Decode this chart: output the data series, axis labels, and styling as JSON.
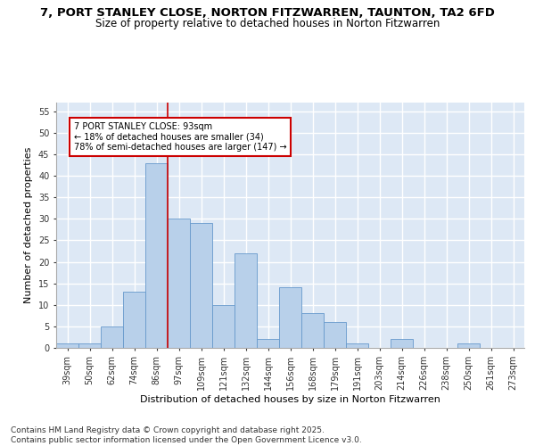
{
  "title1": "7, PORT STANLEY CLOSE, NORTON FITZWARREN, TAUNTON, TA2 6FD",
  "title2": "Size of property relative to detached houses in Norton Fitzwarren",
  "xlabel": "Distribution of detached houses by size in Norton Fitzwarren",
  "ylabel": "Number of detached properties",
  "categories": [
    "39sqm",
    "50sqm",
    "62sqm",
    "74sqm",
    "86sqm",
    "97sqm",
    "109sqm",
    "121sqm",
    "132sqm",
    "144sqm",
    "156sqm",
    "168sqm",
    "179sqm",
    "191sqm",
    "203sqm",
    "214sqm",
    "226sqm",
    "238sqm",
    "250sqm",
    "261sqm",
    "273sqm"
  ],
  "values": [
    1,
    1,
    5,
    13,
    43,
    30,
    29,
    10,
    22,
    2,
    14,
    8,
    6,
    1,
    0,
    2,
    0,
    0,
    1,
    0,
    0
  ],
  "bar_color": "#b8d0ea",
  "bar_edge_color": "#6699cc",
  "bg_color": "#dde8f5",
  "grid_color": "#ffffff",
  "vline_color": "#cc0000",
  "vline_pos": 4.5,
  "annotation_box_text": "7 PORT STANLEY CLOSE: 93sqm\n← 18% of detached houses are smaller (34)\n78% of semi-detached houses are larger (147) →",
  "annotation_box_color": "#cc0000",
  "annotation_fill": "#ffffff",
  "ylim": [
    0,
    57
  ],
  "yticks": [
    0,
    5,
    10,
    15,
    20,
    25,
    30,
    35,
    40,
    45,
    50,
    55
  ],
  "footer": "Contains HM Land Registry data © Crown copyright and database right 2025.\nContains public sector information licensed under the Open Government Licence v3.0.",
  "title_fontsize": 9.5,
  "subtitle_fontsize": 8.5,
  "axis_label_fontsize": 8,
  "tick_fontsize": 7,
  "annot_fontsize": 7,
  "footer_fontsize": 6.5
}
